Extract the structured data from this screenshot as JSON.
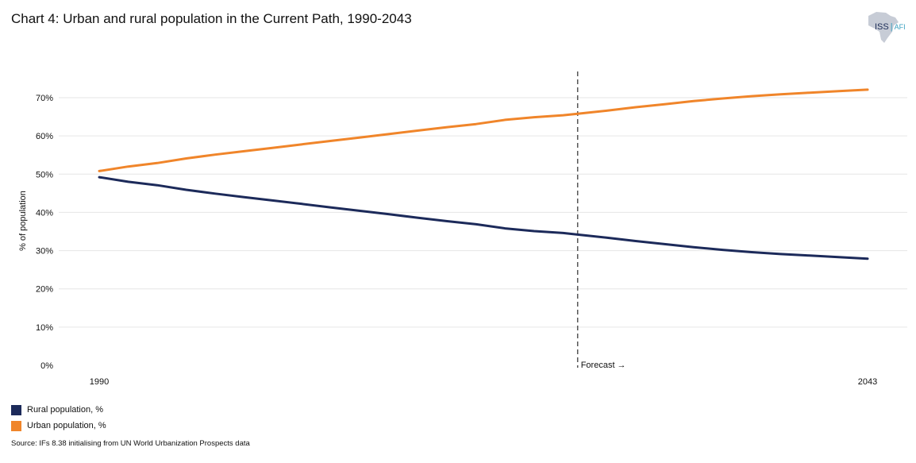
{
  "title": "Chart 4: Urban and rural population in the Current Path, 1990-2043",
  "logo": {
    "text_main": "ISS",
    "text_sub": "AFI",
    "icon": "africa-map-icon"
  },
  "source": "Source: IFs 8.38 initialising from UN World Urbanization Prospects data",
  "colors": {
    "rural": "#1c2a5a",
    "urban": "#f0852a",
    "forecast_line": "#555555",
    "grid": "#e6e6e6"
  },
  "chart_data": {
    "type": "line",
    "title": "Chart 4: Urban and rural population in the Current Path, 1990-2043",
    "xlabel": "",
    "ylabel": "% of population",
    "xlim": [
      1990,
      2043
    ],
    "ylim": [
      0,
      75
    ],
    "x_tick_labels": [
      "1990",
      "2043"
    ],
    "y_ticks": [
      0,
      10,
      20,
      30,
      40,
      50,
      60,
      70
    ],
    "y_tick_labels": [
      "0%",
      "10%",
      "20%",
      "30%",
      "40%",
      "50%",
      "60%",
      "70%"
    ],
    "grid": true,
    "forecast": {
      "x": 2023,
      "label": "Forecast →"
    },
    "legend_position": "bottom-left",
    "x": [
      1990,
      1992,
      1994,
      1996,
      1998,
      2000,
      2002,
      2004,
      2006,
      2008,
      2010,
      2012,
      2014,
      2016,
      2018,
      2020,
      2022,
      2023,
      2025,
      2027,
      2029,
      2031,
      2033,
      2035,
      2037,
      2039,
      2041,
      2043
    ],
    "series": [
      {
        "name": "Rural population, %",
        "color": "#1c2a5a",
        "values": [
          49.2,
          48.0,
          47.1,
          45.9,
          44.9,
          44.0,
          43.1,
          42.2,
          41.3,
          40.4,
          39.5,
          38.6,
          37.7,
          36.9,
          35.8,
          35.1,
          34.6,
          34.2,
          33.4,
          32.5,
          31.7,
          30.9,
          30.2,
          29.6,
          29.1,
          28.7,
          28.3,
          27.9
        ]
      },
      {
        "name": "Urban population, %",
        "color": "#f0852a",
        "values": [
          50.8,
          52.0,
          52.9,
          54.1,
          55.1,
          56.0,
          56.9,
          57.8,
          58.7,
          59.6,
          60.5,
          61.4,
          62.3,
          63.1,
          64.2,
          64.9,
          65.4,
          65.8,
          66.6,
          67.5,
          68.3,
          69.1,
          69.8,
          70.4,
          70.9,
          71.3,
          71.7,
          72.1
        ]
      }
    ]
  }
}
